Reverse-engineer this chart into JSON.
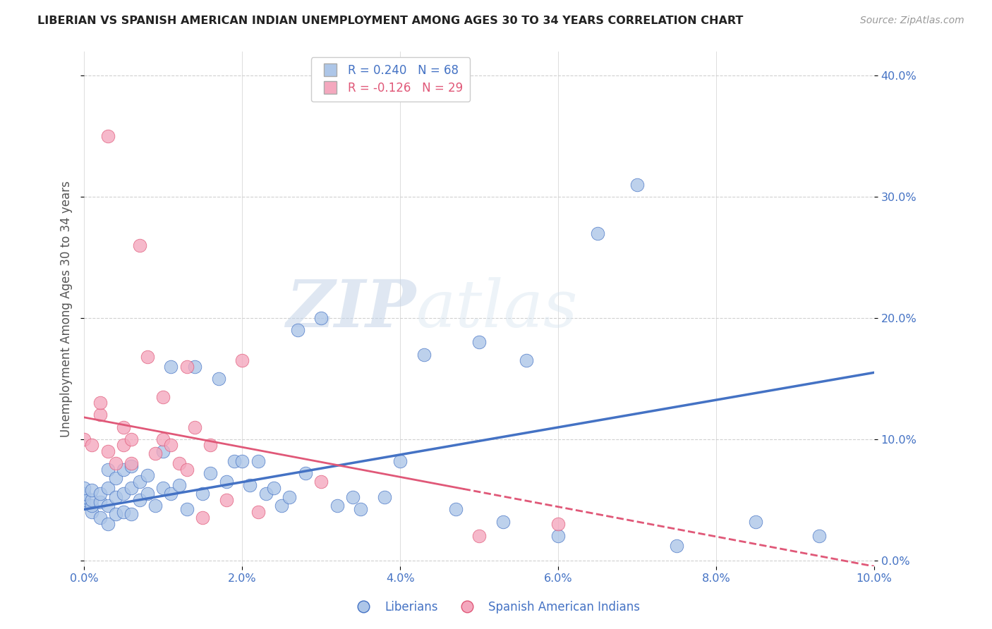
{
  "title": "LIBERIAN VS SPANISH AMERICAN INDIAN UNEMPLOYMENT AMONG AGES 30 TO 34 YEARS CORRELATION CHART",
  "source": "Source: ZipAtlas.com",
  "ylabel": "Unemployment Among Ages 30 to 34 years",
  "xlim": [
    0.0,
    0.1
  ],
  "ylim": [
    -0.005,
    0.42
  ],
  "yticks": [
    0.0,
    0.1,
    0.2,
    0.3,
    0.4
  ],
  "xticks": [
    0.0,
    0.02,
    0.04,
    0.06,
    0.08,
    0.1
  ],
  "liberian_R": 0.24,
  "liberian_N": 68,
  "spanish_R": -0.126,
  "spanish_N": 29,
  "liberian_color": "#adc6e8",
  "spanish_color": "#f4a8be",
  "trend_liberian_color": "#4472c4",
  "trend_spanish_color": "#e05878",
  "watermark_zip": "ZIP",
  "watermark_atlas": "atlas",
  "liberian_x": [
    0.0,
    0.0,
    0.0,
    0.0,
    0.0,
    0.001,
    0.001,
    0.001,
    0.001,
    0.002,
    0.002,
    0.002,
    0.003,
    0.003,
    0.003,
    0.003,
    0.004,
    0.004,
    0.004,
    0.005,
    0.005,
    0.005,
    0.006,
    0.006,
    0.006,
    0.007,
    0.007,
    0.008,
    0.008,
    0.009,
    0.01,
    0.01,
    0.011,
    0.011,
    0.012,
    0.013,
    0.014,
    0.015,
    0.016,
    0.017,
    0.018,
    0.019,
    0.02,
    0.021,
    0.022,
    0.023,
    0.024,
    0.025,
    0.026,
    0.027,
    0.028,
    0.03,
    0.032,
    0.034,
    0.035,
    0.038,
    0.04,
    0.043,
    0.047,
    0.05,
    0.053,
    0.056,
    0.06,
    0.065,
    0.07,
    0.075,
    0.085,
    0.093
  ],
  "liberian_y": [
    0.048,
    0.05,
    0.052,
    0.055,
    0.06,
    0.04,
    0.045,
    0.05,
    0.058,
    0.035,
    0.048,
    0.055,
    0.03,
    0.045,
    0.06,
    0.075,
    0.038,
    0.052,
    0.068,
    0.04,
    0.055,
    0.075,
    0.038,
    0.06,
    0.078,
    0.05,
    0.065,
    0.055,
    0.07,
    0.045,
    0.06,
    0.09,
    0.055,
    0.16,
    0.062,
    0.042,
    0.16,
    0.055,
    0.072,
    0.15,
    0.065,
    0.082,
    0.082,
    0.062,
    0.082,
    0.055,
    0.06,
    0.045,
    0.052,
    0.19,
    0.072,
    0.2,
    0.045,
    0.052,
    0.042,
    0.052,
    0.082,
    0.17,
    0.042,
    0.18,
    0.032,
    0.165,
    0.02,
    0.27,
    0.31,
    0.012,
    0.032,
    0.02
  ],
  "spanish_x": [
    0.0,
    0.001,
    0.002,
    0.002,
    0.003,
    0.003,
    0.004,
    0.005,
    0.005,
    0.006,
    0.006,
    0.007,
    0.008,
    0.009,
    0.01,
    0.01,
    0.011,
    0.012,
    0.013,
    0.013,
    0.014,
    0.015,
    0.016,
    0.018,
    0.02,
    0.022,
    0.03,
    0.05,
    0.06
  ],
  "spanish_y": [
    0.1,
    0.095,
    0.12,
    0.13,
    0.09,
    0.35,
    0.08,
    0.095,
    0.11,
    0.08,
    0.1,
    0.26,
    0.168,
    0.088,
    0.1,
    0.135,
    0.095,
    0.08,
    0.075,
    0.16,
    0.11,
    0.035,
    0.095,
    0.05,
    0.165,
    0.04,
    0.065,
    0.02,
    0.03
  ],
  "trend_lib_x0": 0.0,
  "trend_lib_y0": 0.042,
  "trend_lib_x1": 0.1,
  "trend_lib_y1": 0.155,
  "trend_spa_x0": 0.0,
  "trend_spa_y0": 0.118,
  "trend_spa_x1": 0.1,
  "trend_spa_y1": -0.005
}
